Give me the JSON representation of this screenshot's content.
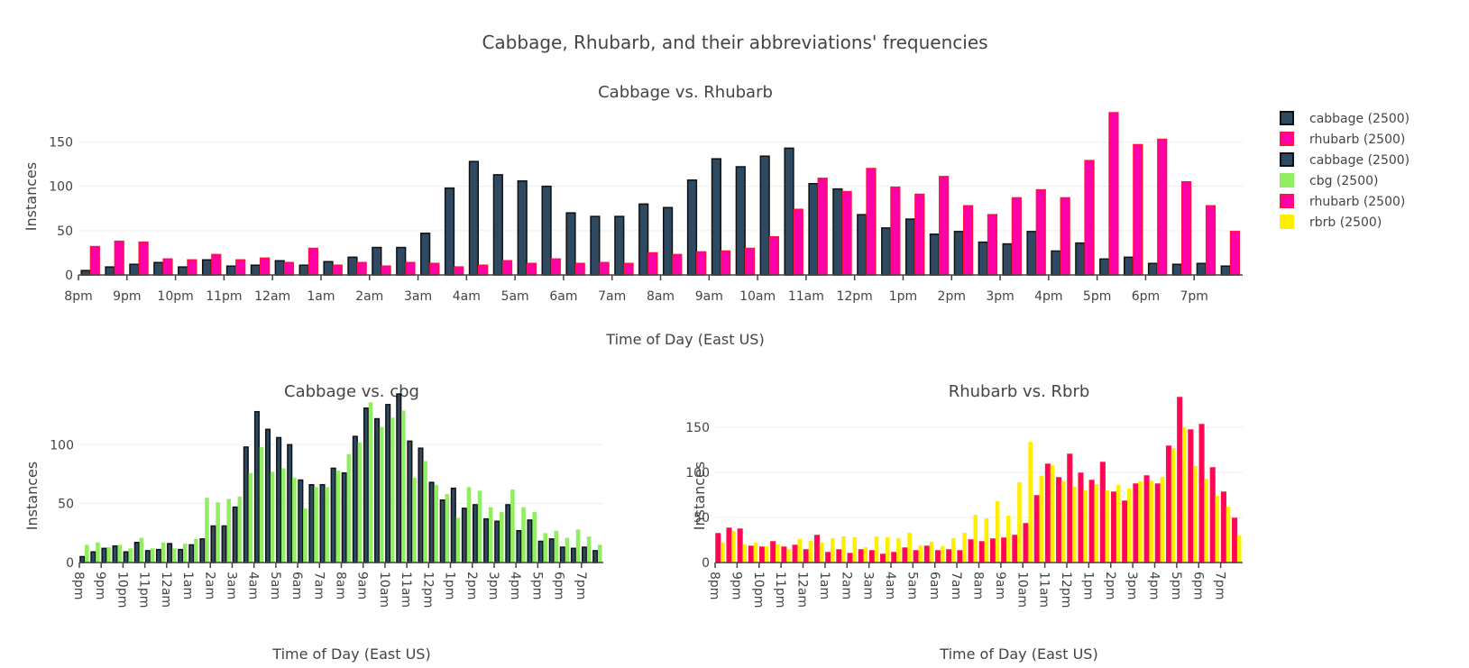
{
  "title": "Cabbage, Rhubarb, and their abbreviations' frequencies",
  "colors": {
    "cabbage_fill": "#2e4a62",
    "cabbage_line": "#111111",
    "rhubarb_fill": "#ff00aa",
    "rhubarb_line": "#ff1144",
    "rhubarb_fill_2": "#ff0066",
    "cbg_fill": "#90ee60",
    "rbrb_fill": "#ffee00",
    "grid": "#eeeeee"
  },
  "legend": [
    {
      "label": "cabbage (2500)",
      "fill": "#2e4a62",
      "line": "#111111"
    },
    {
      "label": "rhubarb (2500)",
      "fill": "#ff00aa",
      "line": "#ff1144"
    },
    {
      "label": "cabbage (2500)",
      "fill": "#2e4a62",
      "line": "#111111"
    },
    {
      "label": "cbg (2500)",
      "fill": "#90ee60",
      "line": "#90ee60"
    },
    {
      "label": "rhubarb (2500)",
      "fill": "#ff00aa",
      "line": "#ff1144"
    },
    {
      "label": "rbrb (2500)",
      "fill": "#ffee00",
      "line": "#ffee00"
    }
  ],
  "chart_data": [
    {
      "type": "bar",
      "title": "Cabbage vs. Rhubarb",
      "xlabel": "Time of Day (East US)",
      "ylabel": "Instances",
      "ylim": [
        0,
        180
      ],
      "yticks": [
        0,
        50,
        100,
        150
      ],
      "tick_labels": [
        "8pm",
        "9pm",
        "10pm",
        "11pm",
        "12am",
        "1am",
        "2am",
        "3am",
        "4am",
        "5am",
        "6am",
        "7am",
        "8am",
        "9am",
        "10am",
        "11am",
        "12pm",
        "1pm",
        "2pm",
        "3pm",
        "4pm",
        "5pm",
        "6pm",
        "7pm"
      ],
      "bins_per_hour": 2,
      "series": [
        {
          "name": "cabbage (2500)",
          "values": [
            5,
            9,
            12,
            14,
            9,
            17,
            10,
            11,
            16,
            11,
            15,
            20,
            31,
            31,
            47,
            98,
            128,
            113,
            106,
            100,
            70,
            66,
            66,
            80,
            76,
            107,
            131,
            122,
            134,
            143,
            103,
            97,
            68,
            53,
            63,
            46,
            49,
            37,
            35,
            49,
            27,
            36,
            18,
            20,
            13,
            12,
            13,
            10
          ]
        },
        {
          "name": "rhubarb (2500)",
          "values": [
            32,
            38,
            37,
            18,
            17,
            23,
            17,
            19,
            14,
            30,
            11,
            14,
            10,
            14,
            13,
            9,
            11,
            16,
            13,
            18,
            13,
            14,
            13,
            25,
            23,
            26,
            27,
            30,
            43,
            74,
            109,
            94,
            120,
            99,
            91,
            111,
            78,
            68,
            87,
            96,
            87,
            129,
            183,
            147,
            153,
            105,
            78,
            49
          ]
        }
      ],
      "grid": true
    },
    {
      "type": "bar",
      "title": "Cabbage vs. cbg",
      "xlabel": "Time of Day (East US)",
      "ylabel": "Instances",
      "ylim": [
        0,
        140
      ],
      "yticks": [
        0,
        50,
        100
      ],
      "tick_labels": [
        "8pm",
        "9pm",
        "10pm",
        "11pm",
        "12am",
        "1am",
        "2am",
        "3am",
        "4am",
        "5am",
        "6am",
        "7am",
        "8am",
        "9am",
        "10am",
        "11am",
        "12pm",
        "1pm",
        "2pm",
        "3pm",
        "4pm",
        "5pm",
        "6pm",
        "7pm"
      ],
      "bins_per_hour": 2,
      "series": [
        {
          "name": "cabbage (2500)",
          "values": [
            5,
            9,
            12,
            14,
            9,
            17,
            10,
            11,
            16,
            11,
            15,
            20,
            31,
            31,
            47,
            98,
            128,
            113,
            106,
            100,
            70,
            66,
            66,
            80,
            76,
            107,
            131,
            122,
            134,
            143,
            103,
            97,
            68,
            53,
            63,
            46,
            49,
            37,
            35,
            49,
            27,
            36,
            18,
            20,
            13,
            12,
            13,
            10
          ]
        },
        {
          "name": "cbg (2500)",
          "values": [
            15,
            17,
            13,
            15,
            12,
            21,
            12,
            17,
            12,
            16,
            20,
            55,
            51,
            54,
            56,
            76,
            98,
            77,
            80,
            72,
            46,
            64,
            64,
            78,
            92,
            102,
            136,
            115,
            123,
            129,
            72,
            86,
            66,
            58,
            38,
            64,
            61,
            47,
            43,
            62,
            47,
            43,
            25,
            27,
            21,
            28,
            22,
            15
          ]
        }
      ],
      "grid": true
    },
    {
      "type": "bar",
      "title": "Rhubarb vs. Rbrb",
      "xlabel": "Time of Day (East US)",
      "ylabel": "Instances",
      "ylim": [
        0,
        183
      ],
      "yticks": [
        0,
        50,
        100,
        150
      ],
      "tick_labels": [
        "8pm",
        "9pm",
        "10pm",
        "11pm",
        "12am",
        "1am",
        "2am",
        "3am",
        "4am",
        "5am",
        "6am",
        "7am",
        "8am",
        "9am",
        "10am",
        "11am",
        "12pm",
        "1pm",
        "2pm",
        "3pm",
        "4pm",
        "5pm",
        "6pm",
        "7pm"
      ],
      "bins_per_hour": 2,
      "series": [
        {
          "name": "rhubarb (2500)",
          "values": [
            32,
            38,
            37,
            18,
            17,
            23,
            17,
            19,
            14,
            30,
            11,
            14,
            10,
            14,
            13,
            9,
            11,
            16,
            13,
            18,
            13,
            14,
            13,
            25,
            23,
            26,
            27,
            30,
            43,
            74,
            109,
            94,
            120,
            99,
            91,
            111,
            78,
            68,
            87,
            96,
            87,
            129,
            183,
            147,
            153,
            105,
            78,
            49
          ]
        },
        {
          "name": "rbrb (2500)",
          "values": [
            22,
            35,
            20,
            22,
            18,
            20,
            15,
            26,
            24,
            22,
            27,
            29,
            28,
            17,
            29,
            28,
            27,
            33,
            19,
            23,
            18,
            27,
            33,
            53,
            49,
            68,
            52,
            89,
            134,
            96,
            108,
            90,
            84,
            80,
            87,
            80,
            86,
            82,
            90,
            91,
            95,
            127,
            150,
            107,
            93,
            74,
            62,
            30
          ]
        }
      ],
      "grid": true
    }
  ]
}
